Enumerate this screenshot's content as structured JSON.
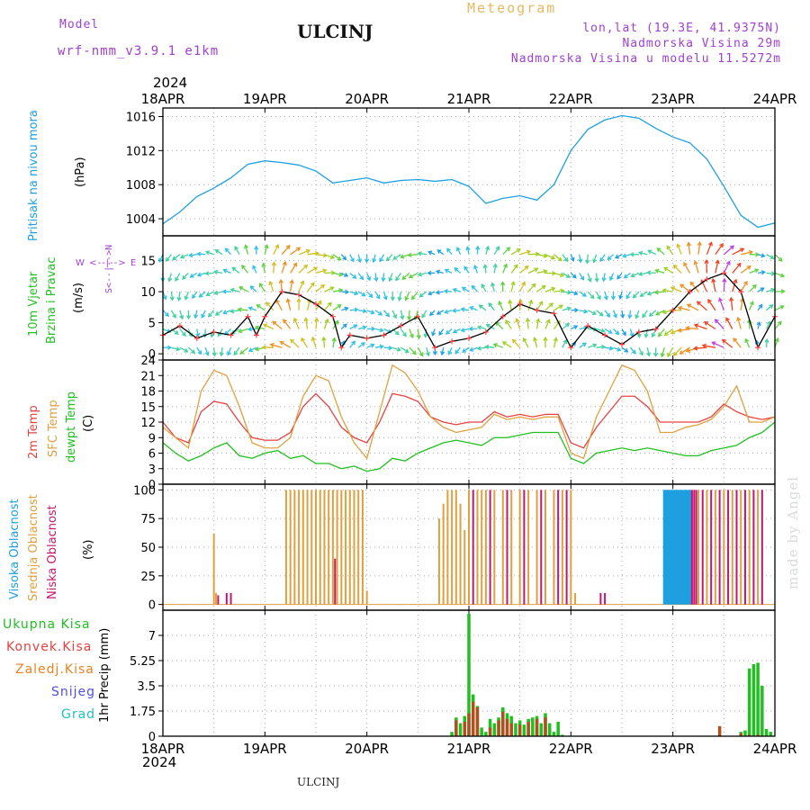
{
  "header": {
    "model_label": "Model",
    "model_name": "wrf-nmm_v3.9.1  e1km",
    "station": "ULCINJ",
    "product": "Meteogram",
    "lonlat": "lon,lat (19.3E, 41.9375N)",
    "elevation": "Nadmorska Visina 29m",
    "model_elevation": "Nadmorska Visina u modelu 11.5272m"
  },
  "footer": {
    "station": "ULCINJ",
    "watermark": "made by Angel"
  },
  "dates": {
    "year": "2024",
    "labels": [
      "18APR",
      "19APR",
      "20APR",
      "21APR",
      "22APR",
      "23APR",
      "24APR"
    ]
  },
  "colors": {
    "pressure": "#1ea0e0",
    "temp2m": "#e84040",
    "sfc": "#e0a040",
    "dewpt": "#20c020",
    "visoka": "#1ea0e0",
    "srednja": "#e0a040",
    "niska": "#c01870",
    "ukupna": "#20c020",
    "konvek": "#e84040",
    "zaledj": "#f08020",
    "snijeg": "#5050e0",
    "grad": "#20c0c0",
    "wind_purple": "#c040e0",
    "wind_text": "#a040d0",
    "grid": "#aaaaaa"
  },
  "panels": {
    "pressure": {
      "label": "Pritisak na nivou mora",
      "unit": "(hPa)"
    },
    "wind": {
      "label1": "10m Vjetar",
      "label2": "Brzina i Pravac",
      "unit": "(m/s)",
      "compass": [
        "W",
        "<--|-->",
        "E"
      ],
      "compass_vertical": "S<--|-->N"
    },
    "temperature": {
      "label1": "2m Temp",
      "label2": "SFC Temp",
      "label3": "dewpt Temp",
      "unit": "(C)"
    },
    "clouds": {
      "label1": "Visoka Oblacnost",
      "label2": "Srednja Oblacnost",
      "label3": "Niska Oblacnost",
      "unit": "(%)"
    },
    "precip": {
      "unit": "1hr Precip (mm)",
      "legend": [
        "Ukupna Kisa",
        "Konvek.Kisa",
        "Zaledj.Kisa",
        "Snijeg",
        "Grad"
      ]
    }
  },
  "chart_data": [
    {
      "type": "line",
      "name": "pressure",
      "x_unit": "hours from 18APR 00UTC",
      "xlim": [
        0,
        144
      ],
      "ylim": [
        1002,
        1017
      ],
      "yticks": [
        "1004",
        "1008",
        "1012",
        "1016"
      ],
      "grid": true,
      "series": [
        {
          "name": "Pritisak na nivou mora",
          "x": [
            0,
            4,
            8,
            12,
            16,
            20,
            24,
            28,
            32,
            36,
            40,
            44,
            48,
            52,
            56,
            60,
            64,
            68,
            72,
            76,
            80,
            84,
            88,
            92,
            96,
            100,
            104,
            108,
            112,
            116,
            120,
            124,
            128,
            132,
            136,
            140,
            144
          ],
          "values": [
            1003.4,
            1004.8,
            1006.6,
            1007.6,
            1008.8,
            1010.4,
            1010.8,
            1010.6,
            1010.3,
            1009.6,
            1008.2,
            1008.5,
            1008.8,
            1008.2,
            1008.5,
            1008.6,
            1008.4,
            1008.6,
            1007.8,
            1005.8,
            1006.4,
            1006.7,
            1006.2,
            1008.0,
            1012.0,
            1014.5,
            1015.6,
            1016.1,
            1015.8,
            1014.6,
            1013.6,
            1012.9,
            1011.0,
            1007.8,
            1004.4,
            1003.0,
            1003.5
          ]
        }
      ]
    },
    {
      "type": "line",
      "name": "wind",
      "x_unit": "hours from 18APR 00UTC",
      "xlim": [
        0,
        144
      ],
      "ylim": [
        -1,
        19
      ],
      "yticks": [
        "0",
        "5",
        "10",
        "15"
      ],
      "grid": true,
      "series": [
        {
          "name": "Brzina",
          "x": [
            0,
            4,
            8,
            12,
            16,
            20,
            22,
            24,
            28,
            32,
            36,
            40,
            42,
            44,
            48,
            52,
            56,
            60,
            64,
            68,
            72,
            76,
            80,
            84,
            88,
            92,
            96,
            100,
            104,
            108,
            112,
            116,
            120,
            124,
            128,
            132,
            136,
            140,
            144
          ],
          "values": [
            3,
            4.5,
            2.5,
            3.5,
            3,
            6,
            3,
            6,
            10,
            9.5,
            8,
            6,
            1,
            3,
            2.5,
            3,
            4.5,
            6,
            1,
            2,
            2.5,
            3.5,
            6,
            8,
            7,
            6.5,
            1,
            4.5,
            3,
            1.5,
            3.5,
            4,
            7,
            10,
            12,
            13,
            10,
            1,
            6
          ]
        }
      ],
      "wind_barbs": true
    },
    {
      "type": "line",
      "name": "temperature",
      "x_unit": "hours from 18APR 00UTC",
      "xlim": [
        0,
        144
      ],
      "ylim": [
        0,
        24
      ],
      "yticks": [
        "0",
        "3",
        "6",
        "9",
        "12",
        "15",
        "18",
        "21",
        "24"
      ],
      "grid": true,
      "series": [
        {
          "name": "2m Temp",
          "x": [
            0,
            3,
            6,
            9,
            12,
            15,
            18,
            21,
            24,
            27,
            30,
            33,
            36,
            39,
            42,
            45,
            48,
            51,
            54,
            57,
            60,
            63,
            66,
            69,
            72,
            75,
            78,
            81,
            84,
            87,
            90,
            93,
            96,
            99,
            102,
            105,
            108,
            111,
            114,
            117,
            120,
            123,
            126,
            129,
            132,
            135,
            138,
            141,
            144
          ],
          "values": [
            12,
            9,
            8,
            14,
            16,
            15.5,
            12,
            9,
            8.5,
            8.5,
            10,
            15,
            17.5,
            15,
            11,
            9,
            8,
            12,
            17.5,
            17,
            16,
            13,
            12,
            11.5,
            12,
            12,
            14,
            13,
            13.5,
            13,
            13.5,
            13.5,
            8,
            7,
            11,
            14,
            17,
            17,
            15,
            12,
            12,
            12,
            12,
            13,
            15.5,
            14,
            13,
            12.5,
            13
          ]
        },
        {
          "name": "SFC Temp",
          "x": [
            0,
            3,
            6,
            9,
            12,
            15,
            18,
            21,
            24,
            27,
            30,
            33,
            36,
            39,
            42,
            45,
            48,
            51,
            54,
            57,
            60,
            63,
            66,
            69,
            72,
            75,
            78,
            81,
            84,
            87,
            90,
            93,
            96,
            99,
            102,
            105,
            108,
            111,
            114,
            117,
            120,
            123,
            126,
            129,
            132,
            135,
            138,
            141,
            144
          ],
          "values": [
            11,
            9,
            7,
            18,
            22,
            21,
            15,
            8,
            7,
            7,
            9,
            17,
            21,
            20,
            13,
            8,
            5,
            14,
            23,
            21.5,
            18,
            13,
            11,
            10,
            10.5,
            11,
            13.5,
            12.5,
            13,
            12.5,
            13,
            13,
            6,
            5,
            13,
            18,
            23,
            22,
            18,
            10,
            10,
            11,
            11.5,
            12.5,
            15,
            19,
            12,
            12,
            13
          ]
        },
        {
          "name": "dewpt Temp",
          "x": [
            0,
            3,
            6,
            9,
            12,
            15,
            18,
            21,
            24,
            27,
            30,
            33,
            36,
            39,
            42,
            45,
            48,
            51,
            54,
            57,
            60,
            63,
            66,
            69,
            72,
            75,
            78,
            81,
            84,
            87,
            90,
            93,
            96,
            99,
            102,
            105,
            108,
            111,
            114,
            117,
            120,
            123,
            126,
            129,
            132,
            135,
            138,
            141,
            144
          ],
          "values": [
            8,
            6,
            4.5,
            5.5,
            7,
            8,
            5.5,
            5,
            6,
            6.5,
            5,
            5.5,
            4,
            4,
            3,
            3.5,
            2.5,
            3,
            5,
            4.5,
            6,
            7,
            8,
            8.5,
            8,
            7.5,
            9,
            9,
            9.5,
            10,
            10,
            10,
            5,
            4,
            6,
            6.5,
            7,
            6.5,
            7,
            6.5,
            6,
            5.5,
            5.5,
            6.5,
            7,
            7.5,
            9,
            10,
            12
          ]
        }
      ]
    },
    {
      "type": "bar",
      "name": "clouds",
      "x_unit": "hours from 18APR 00UTC",
      "xlim": [
        0,
        144
      ],
      "ylim": [
        -5,
        105
      ],
      "yticks": [
        "0",
        "25",
        "50",
        "75",
        "100"
      ],
      "grid": true,
      "series": [
        {
          "name": "Visoka Oblacnost",
          "x": [
            118,
            118.5,
            119,
            119.5,
            120,
            120.5,
            121,
            121.5,
            122,
            122.5,
            123,
            123.5,
            124
          ],
          "values": [
            100,
            100,
            100,
            100,
            100,
            100,
            100,
            100,
            100,
            100,
            100,
            100,
            100
          ]
        },
        {
          "name": "Srednja Oblacnost",
          "x": [
            12,
            12.5,
            29,
            30,
            31,
            32,
            33,
            34,
            35,
            36,
            37,
            38,
            39,
            40,
            41,
            42,
            43,
            44,
            45,
            46,
            47,
            48,
            65,
            66,
            67,
            68,
            69,
            70,
            71,
            72,
            74,
            75,
            76,
            78,
            80,
            82,
            84,
            86,
            88,
            90,
            92,
            94,
            96,
            97,
            126,
            128,
            130,
            132,
            134,
            136,
            138,
            140
          ],
          "values": [
            62,
            10,
            100,
            100,
            100,
            100,
            100,
            100,
            100,
            100,
            100,
            100,
            100,
            100,
            100,
            100,
            100,
            100,
            100,
            100,
            100,
            12,
            75,
            88,
            100,
            100,
            100,
            88,
            65,
            100,
            100,
            100,
            100,
            100,
            100,
            100,
            100,
            100,
            100,
            100,
            100,
            100,
            100,
            10,
            100,
            100,
            100,
            100,
            100,
            100,
            100,
            100
          ]
        },
        {
          "name": "Niska Oblacnost",
          "x": [
            13,
            15,
            16,
            40.5,
            73,
            77,
            81,
            85,
            89,
            93,
            95,
            103,
            104,
            124.5,
            125,
            125.5,
            127,
            129,
            131,
            133,
            135,
            137,
            139,
            141
          ],
          "values": [
            8,
            10,
            10,
            40,
            100,
            100,
            100,
            100,
            100,
            100,
            100,
            10,
            10,
            100,
            100,
            100,
            100,
            100,
            100,
            100,
            100,
            100,
            100,
            100
          ]
        }
      ]
    },
    {
      "type": "bar",
      "name": "precip",
      "x_unit": "hours from 18APR 00UTC",
      "xlim": [
        0,
        144
      ],
      "ylim": [
        0,
        8.75
      ],
      "yticks": [
        "0",
        "1.75",
        "3.5",
        "5.25",
        "7"
      ],
      "grid": true,
      "series": [
        {
          "name": "Ukupna Kisa",
          "x": [
            68,
            69,
            70,
            71,
            72,
            73,
            74,
            75,
            76,
            77,
            78,
            79,
            80,
            81,
            82,
            83,
            84,
            85,
            86,
            87,
            88,
            89,
            90,
            91,
            92,
            93,
            94,
            136,
            137,
            138,
            139,
            140,
            141,
            142,
            143
          ],
          "values": [
            0.3,
            1.3,
            0.9,
            1.4,
            8.5,
            2.9,
            2.1,
            0.6,
            0.3,
            1.2,
            0.9,
            1.3,
            2.0,
            1.6,
            1.4,
            0.9,
            1.1,
            0.8,
            1.2,
            1.3,
            1.4,
            0.9,
            1.6,
            0.9,
            0.3,
            1.0,
            0.1,
            0.3,
            0.4,
            4.7,
            5.0,
            5.1,
            3.5,
            0.5,
            0.3
          ]
        },
        {
          "name": "Konvek.Kisa",
          "x": [
            69,
            71,
            72,
            73,
            74,
            77,
            79,
            80,
            81,
            82,
            84,
            86,
            88,
            90,
            131,
            136,
            138,
            140
          ],
          "values": [
            1.1,
            1.0,
            1.6,
            2.4,
            2.0,
            0.6,
            1.1,
            1.7,
            1.2,
            0.9,
            0.8,
            1.0,
            1.2,
            1.3,
            0.7,
            0.2,
            0.1,
            0.1
          ]
        }
      ]
    }
  ]
}
